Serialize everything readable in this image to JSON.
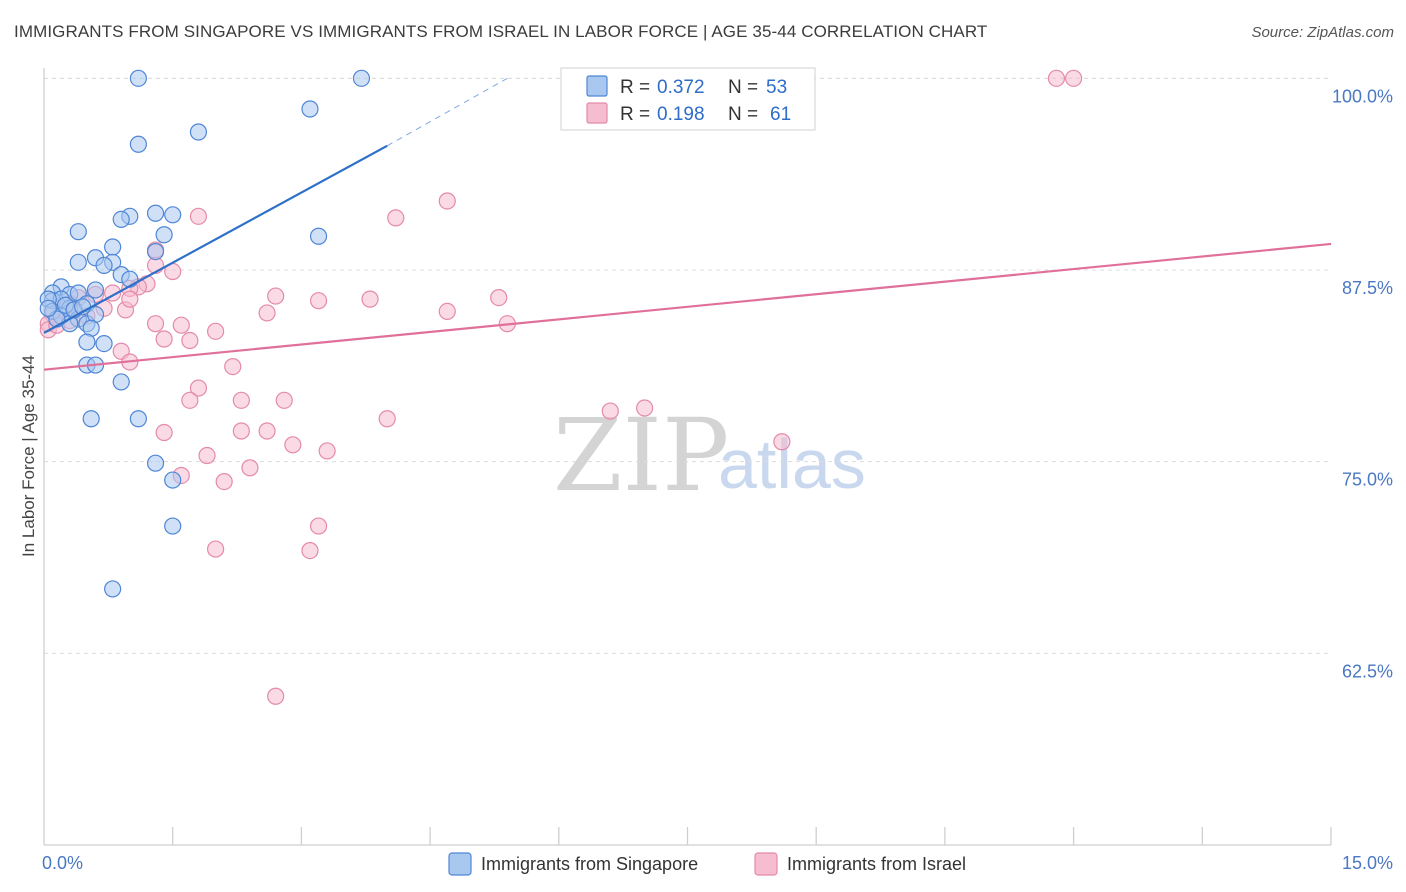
{
  "header": {
    "title": "IMMIGRANTS FROM SINGAPORE VS IMMIGRANTS FROM ISRAEL IN LABOR FORCE | AGE 35-44 CORRELATION CHART",
    "source": "Source: ZipAtlas.com"
  },
  "watermark": {
    "zip": "ZIP",
    "atlas": "atlas"
  },
  "colors": {
    "singapore_fill": "#a9c8f0",
    "singapore_stroke": "#4f86d6",
    "singapore_line": "#2f70c8",
    "israel_fill": "#f6bcd0",
    "israel_stroke": "#e48aaa",
    "israel_line": "#e0709a",
    "grid": "#dcdcdc",
    "tick_label": "#4a78c2"
  },
  "legend": {
    "rows": [
      {
        "r_label": "R =",
        "r_value": "0.372",
        "n_label": "N =",
        "n_value": "53"
      },
      {
        "r_label": "R =",
        "r_value": "0.198",
        "n_label": "N =",
        "n_value": "61"
      }
    ]
  },
  "chart_data": {
    "type": "scatter",
    "title": "IMMIGRANTS FROM SINGAPORE VS IMMIGRANTS FROM ISRAEL IN LABOR FORCE | AGE 35-44 CORRELATION CHART",
    "xlabel": "",
    "ylabel": "In Labor Force | Age 35-44",
    "xlim": [
      0,
      15
    ],
    "ylim": [
      50,
      101
    ],
    "x_tick_labels": [
      "0.0%",
      "15.0%"
    ],
    "y_ticks": [
      62.5,
      75.0,
      87.5,
      100.0
    ],
    "y_tick_labels": [
      "62.5%",
      "75.0%",
      "87.5%",
      "100.0%"
    ],
    "grid": true,
    "series": [
      {
        "name": "Immigrants from Singapore",
        "R": 0.372,
        "N": 53,
        "trend": {
          "x": [
            0,
            4.0
          ],
          "y": [
            83.4,
            95.6
          ],
          "dashed_to": [
            5.4,
            100.0
          ]
        },
        "points": [
          [
            1.1,
            100.0
          ],
          [
            3.7,
            100.0
          ],
          [
            3.1,
            98.0
          ],
          [
            1.8,
            96.5
          ],
          [
            1.1,
            95.7
          ],
          [
            1.3,
            91.2
          ],
          [
            1.0,
            91.0
          ],
          [
            0.9,
            90.8
          ],
          [
            1.5,
            91.1
          ],
          [
            0.4,
            90.0
          ],
          [
            3.2,
            89.7
          ],
          [
            1.4,
            89.8
          ],
          [
            0.8,
            89.0
          ],
          [
            1.3,
            88.7
          ],
          [
            0.6,
            88.3
          ],
          [
            0.4,
            88.0
          ],
          [
            0.8,
            88.0
          ],
          [
            0.7,
            87.8
          ],
          [
            0.9,
            87.2
          ],
          [
            1.0,
            86.9
          ],
          [
            0.2,
            86.4
          ],
          [
            0.1,
            86.0
          ],
          [
            0.3,
            85.9
          ],
          [
            0.4,
            86.0
          ],
          [
            0.6,
            86.2
          ],
          [
            0.1,
            85.5
          ],
          [
            0.2,
            85.6
          ],
          [
            0.3,
            85.0
          ],
          [
            0.5,
            85.3
          ],
          [
            0.05,
            85.6
          ],
          [
            0.1,
            84.8
          ],
          [
            0.2,
            84.5
          ],
          [
            0.4,
            84.3
          ],
          [
            0.5,
            84.0
          ],
          [
            0.6,
            84.6
          ],
          [
            0.3,
            84.0
          ],
          [
            0.15,
            84.3
          ],
          [
            0.55,
            83.7
          ],
          [
            0.5,
            82.8
          ],
          [
            0.7,
            82.7
          ],
          [
            0.5,
            81.3
          ],
          [
            0.6,
            81.3
          ],
          [
            0.9,
            80.2
          ],
          [
            0.55,
            77.8
          ],
          [
            1.1,
            77.8
          ],
          [
            1.3,
            74.9
          ],
          [
            1.5,
            73.8
          ],
          [
            1.5,
            70.8
          ],
          [
            0.8,
            66.7
          ],
          [
            0.05,
            85.0
          ],
          [
            0.25,
            85.2
          ],
          [
            0.35,
            84.9
          ],
          [
            0.45,
            85.1
          ]
        ]
      },
      {
        "name": "Immigrants from Israel",
        "R": 0.198,
        "N": 61,
        "trend": {
          "x": [
            0,
            15
          ],
          "y": [
            81.0,
            89.2
          ]
        },
        "points": [
          [
            11.8,
            100.0
          ],
          [
            12.0,
            100.0
          ],
          [
            4.7,
            92.0
          ],
          [
            4.1,
            90.9
          ],
          [
            1.8,
            91.0
          ],
          [
            1.3,
            88.8
          ],
          [
            1.3,
            87.8
          ],
          [
            1.5,
            87.4
          ],
          [
            1.2,
            86.6
          ],
          [
            1.1,
            86.4
          ],
          [
            1.0,
            86.3
          ],
          [
            0.8,
            86.0
          ],
          [
            0.6,
            85.9
          ],
          [
            0.4,
            85.7
          ],
          [
            0.3,
            85.3
          ],
          [
            0.2,
            85.0
          ],
          [
            0.1,
            84.6
          ],
          [
            0.05,
            84.0
          ],
          [
            0.05,
            83.6
          ],
          [
            0.15,
            83.9
          ],
          [
            0.3,
            84.2
          ],
          [
            0.5,
            84.5
          ],
          [
            0.7,
            85.0
          ],
          [
            0.95,
            84.9
          ],
          [
            1.0,
            85.6
          ],
          [
            2.7,
            85.8
          ],
          [
            3.2,
            85.5
          ],
          [
            3.8,
            85.6
          ],
          [
            5.3,
            85.7
          ],
          [
            4.7,
            84.8
          ],
          [
            5.4,
            84.0
          ],
          [
            2.6,
            84.7
          ],
          [
            1.3,
            84.0
          ],
          [
            1.6,
            83.9
          ],
          [
            1.4,
            83.0
          ],
          [
            1.7,
            82.9
          ],
          [
            2.0,
            83.5
          ],
          [
            0.9,
            82.2
          ],
          [
            1.0,
            81.5
          ],
          [
            2.2,
            81.2
          ],
          [
            1.8,
            79.8
          ],
          [
            1.7,
            79.0
          ],
          [
            2.3,
            79.0
          ],
          [
            2.8,
            79.0
          ],
          [
            4.0,
            77.8
          ],
          [
            6.6,
            78.3
          ],
          [
            7.0,
            78.5
          ],
          [
            8.6,
            76.3
          ],
          [
            1.4,
            76.9
          ],
          [
            2.3,
            77.0
          ],
          [
            2.6,
            77.0
          ],
          [
            3.3,
            75.7
          ],
          [
            2.9,
            76.1
          ],
          [
            1.9,
            75.4
          ],
          [
            2.4,
            74.6
          ],
          [
            1.6,
            74.1
          ],
          [
            2.1,
            73.7
          ],
          [
            3.2,
            70.8
          ],
          [
            2.0,
            69.3
          ],
          [
            3.1,
            69.2
          ],
          [
            2.7,
            59.7
          ]
        ]
      }
    ],
    "legend_position": "top-center"
  },
  "bottom_legend": {
    "items": [
      {
        "label": "Immigrants from Singapore"
      },
      {
        "label": "Immigrants from Israel"
      }
    ]
  }
}
